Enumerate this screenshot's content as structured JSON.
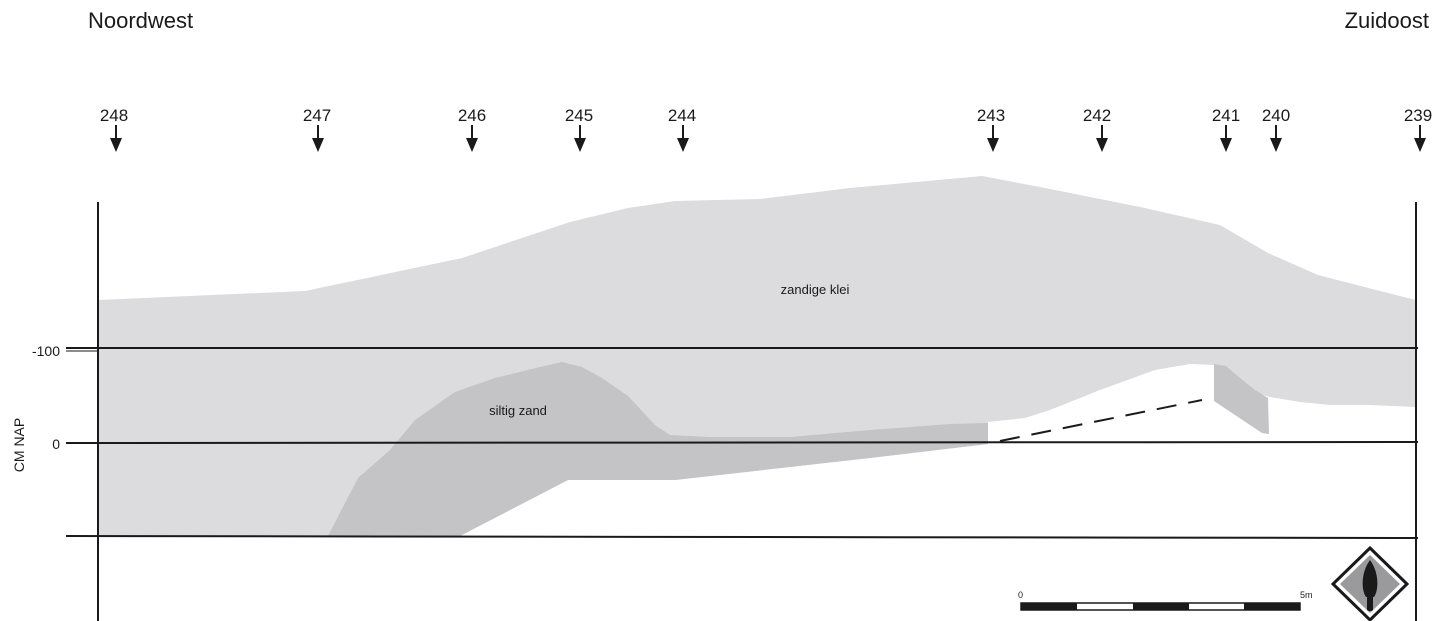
{
  "orientation": {
    "left": "Noordwest",
    "right": "Zuidoost"
  },
  "boreholes": [
    "248",
    "247",
    "246",
    "245",
    "244",
    "243",
    "242",
    "241",
    "240",
    "239"
  ],
  "layers": {
    "clay": {
      "name": "zandige klei",
      "color": "#dcdcde"
    },
    "silt": {
      "name": "siltig zand",
      "color": "#c4c4c6"
    }
  },
  "axis": {
    "unit_label": "CM NAP",
    "tick_100": "-100",
    "tick_0": "0"
  },
  "scale_bar": {
    "start": "0",
    "end": "5m"
  },
  "logo_icon": "trowel-diamond-icon"
}
